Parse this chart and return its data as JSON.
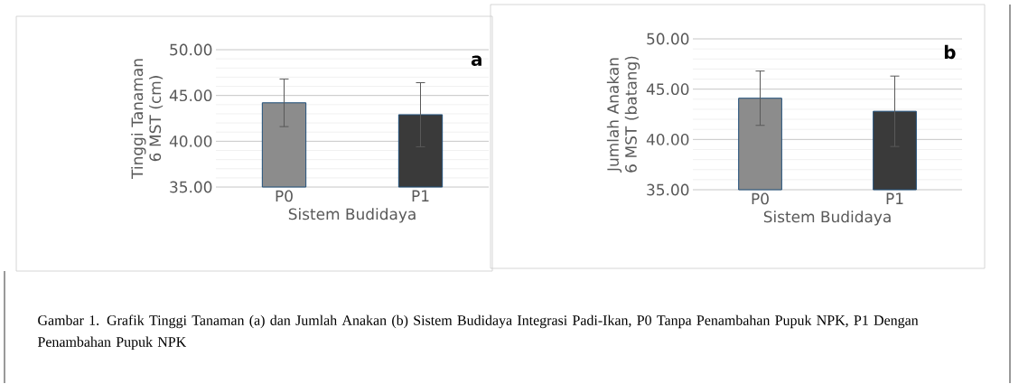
{
  "chart_data": [
    {
      "type": "bar",
      "xlabel": "Sistem Budidaya",
      "ylabel": "Tinggi Tanaman 6 MST (cm)",
      "categories": [
        "P0",
        "P1"
      ],
      "values": [
        44.2,
        42.9
      ],
      "errors": [
        2.6,
        3.5
      ],
      "colors": [
        "#8c8c8c",
        "#3a3a3a"
      ],
      "ylim": [
        35,
        50
      ],
      "yticks": [
        {
          "value": 35,
          "label": "35.00"
        },
        {
          "value": 40,
          "label": "40.00"
        },
        {
          "value": 45,
          "label": "45.00"
        },
        {
          "value": 50,
          "label": "50.00"
        }
      ],
      "grid": "y",
      "annotations": [
        "a"
      ]
    },
    {
      "type": "bar",
      "xlabel": "Sistem Budidaya",
      "ylabel": "Jumlah Anakan 6 MST (batang)",
      "categories": [
        "P0",
        "P1"
      ],
      "values": [
        44.1,
        42.8
      ],
      "errors": [
        2.7,
        3.5
      ],
      "colors": [
        "#8c8c8c",
        "#3a3a3a"
      ],
      "ylim": [
        35,
        50
      ],
      "yticks": [
        {
          "value": 35,
          "label": "35.00"
        },
        {
          "value": 40,
          "label": "40.00"
        },
        {
          "value": 45,
          "label": "45.00"
        },
        {
          "value": 50,
          "label": "50.00"
        }
      ],
      "grid": "y",
      "annotations": [
        "b",
        "Gambar 1. Grafik Tinggi Tanaman (a) dan Jumlah Anakan (b) Sistem Budidaya Integrasi Padi-Ikan, P0 Tanpa Penambahan Pupuk NPK, P1 Dengan Penambahan Pupuk NPK"
      ]
    }
  ]
}
